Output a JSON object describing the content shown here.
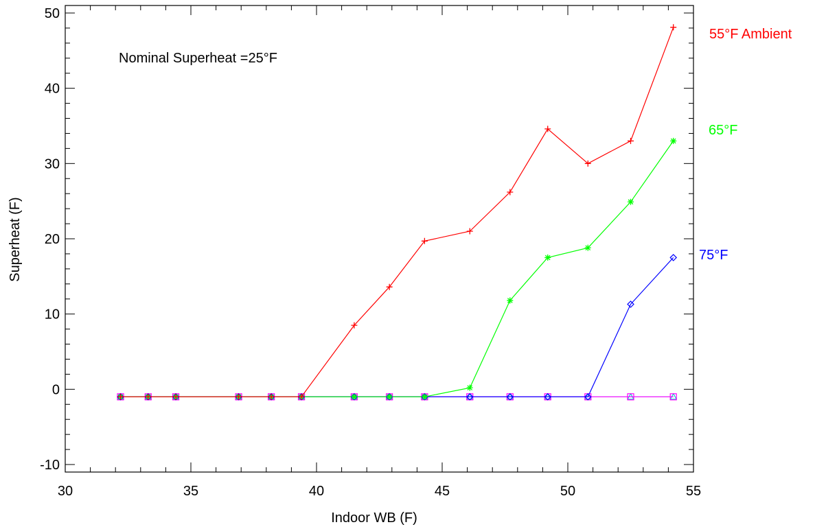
{
  "chart_data": {
    "type": "line",
    "xlabel": "Indoor WB (F)",
    "ylabel": "Superheat (F)",
    "xlim": [
      30,
      55
    ],
    "ylim": [
      -11,
      51
    ],
    "x_ticks": [
      30,
      35,
      40,
      45,
      50,
      55
    ],
    "y_ticks": [
      -10,
      0,
      10,
      20,
      30,
      40,
      50
    ],
    "x_minor_step": 1,
    "y_minor_step": 2,
    "annotation": "Nominal Superheat =25°F",
    "series": [
      {
        "name": "55°F Ambient",
        "color": "#ff0000",
        "marker": "plus",
        "x": [
          32.2,
          33.3,
          34.4,
          36.9,
          38.2,
          39.4,
          41.5,
          42.9,
          44.3,
          46.1,
          47.7,
          49.2,
          50.8,
          52.5,
          54.2
        ],
        "y": [
          -1,
          -1,
          -1,
          -1,
          -1,
          -1,
          8.5,
          13.6,
          19.7,
          21.0,
          26.2,
          34.6,
          30.0,
          33.0,
          48.1
        ]
      },
      {
        "name": "65°F",
        "color": "#00ff00",
        "marker": "asterisk",
        "x": [
          32.2,
          33.3,
          34.4,
          36.9,
          38.2,
          39.4,
          41.5,
          42.9,
          44.3,
          46.1,
          47.7,
          49.2,
          50.8,
          52.5,
          54.2
        ],
        "y": [
          -1,
          -1,
          -1,
          -1,
          -1,
          -1,
          -1,
          -1,
          -1,
          0.2,
          11.8,
          17.5,
          18.8,
          24.9,
          33.0
        ]
      },
      {
        "name": "75°F",
        "color": "#0000ff",
        "marker": "diamond",
        "x": [
          32.2,
          33.3,
          34.4,
          36.9,
          38.2,
          39.4,
          41.5,
          42.9,
          44.3,
          46.1,
          47.7,
          49.2,
          50.8,
          52.5,
          54.2
        ],
        "y": [
          -1,
          -1,
          -1,
          -1,
          -1,
          -1,
          -1,
          -1,
          -1,
          -1,
          -1,
          -1,
          -1,
          11.3,
          17.5
        ]
      },
      {
        "color": "#ff00ff",
        "marker": "square",
        "x": [
          32.2,
          33.3,
          34.4,
          36.9,
          38.2,
          39.4,
          41.5,
          42.9,
          44.3,
          46.1,
          47.7,
          49.2,
          50.8,
          52.5,
          54.2
        ],
        "y": [
          -1,
          -1,
          -1,
          -1,
          -1,
          -1,
          -1,
          -1,
          -1,
          -1,
          -1,
          -1,
          -1,
          -1,
          -1
        ]
      },
      {
        "color": "#00c8c8",
        "marker": "triangle",
        "line_color": "#87cefa",
        "x": [
          32.2,
          33.3,
          34.4,
          36.9,
          38.2,
          39.4,
          41.5,
          42.9,
          44.3,
          46.1,
          47.7,
          49.2,
          50.8,
          52.5,
          54.2
        ],
        "y": [
          -1,
          -1,
          -1,
          -1,
          -1,
          -1,
          -1,
          -1,
          -1,
          -1,
          -1,
          -1,
          -1,
          -1,
          -1
        ]
      }
    ]
  }
}
